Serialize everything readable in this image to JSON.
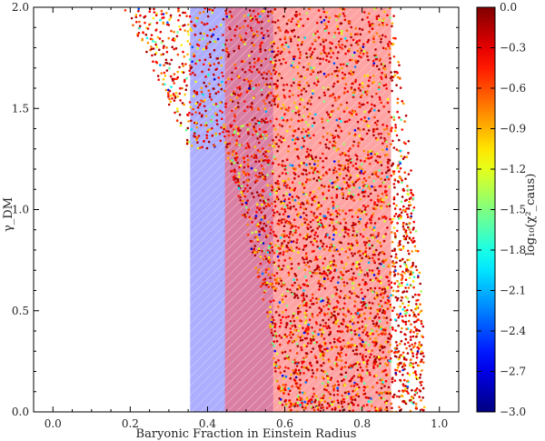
{
  "chart_data": {
    "type": "scatter",
    "xlabel": "Baryonic Fraction in Einstein Radius",
    "ylabel": "γ_DM",
    "xlim": [
      -0.05,
      1.05
    ],
    "ylim": [
      0.0,
      2.0
    ],
    "xticks": [
      0.0,
      0.2,
      0.4,
      0.6,
      0.8,
      1.0
    ],
    "xtick_labels": [
      "0.0",
      "0.2",
      "0.4",
      "0.6",
      "0.8",
      "1.0"
    ],
    "yticks": [
      0.0,
      0.5,
      1.0,
      1.5,
      2.0
    ],
    "ytick_labels": [
      "0.0",
      "0.5",
      "1.0",
      "1.5",
      "2.0"
    ],
    "colorbar": {
      "label": "log₁₀(χ²_caus)",
      "range": [
        -3.0,
        0.0
      ],
      "ticks": [
        0.0,
        -0.3,
        -0.6,
        -0.9,
        -1.2,
        -1.5,
        -1.8,
        -2.1,
        -2.4,
        -2.7,
        -3.0
      ],
      "tick_labels": [
        "0.0",
        "−0.3",
        "−0.6",
        "−0.9",
        "−1.2",
        "−1.5",
        "−1.8",
        "−2.1",
        "−2.4",
        "−2.7",
        "−3.0"
      ],
      "colormap": "jet"
    },
    "bands": [
      {
        "x": [
          0.355,
          0.57
        ],
        "color": "#6b6bff",
        "hatch": "diagonal"
      },
      {
        "x": [
          0.445,
          0.875
        ],
        "color": "#ff5a5a",
        "hatch": "diagonal"
      }
    ],
    "envelope": {
      "left_edge": [
        [
          0.22,
          2.0
        ],
        [
          0.34,
          1.75
        ],
        [
          0.4,
          1.55
        ],
        [
          0.45,
          1.25
        ],
        [
          0.48,
          1.05
        ],
        [
          0.52,
          0.75
        ],
        [
          0.555,
          0.45
        ],
        [
          0.575,
          0.2
        ],
        [
          0.59,
          0.0
        ]
      ],
      "right_edge": [
        [
          0.88,
          2.0
        ],
        [
          0.9,
          1.7
        ],
        [
          0.915,
          1.45
        ],
        [
          0.93,
          1.15
        ],
        [
          0.945,
          0.8
        ],
        [
          0.958,
          0.45
        ],
        [
          0.962,
          0.2
        ],
        [
          0.965,
          0.0
        ]
      ],
      "secondary_left_edge": [
        [
          0.18,
          2.0
        ],
        [
          0.22,
          1.85
        ],
        [
          0.28,
          1.6
        ],
        [
          0.33,
          1.4
        ],
        [
          0.35,
          1.3
        ]
      ]
    },
    "point_density": "dense scatter sampled inside envelope",
    "grid": false
  }
}
